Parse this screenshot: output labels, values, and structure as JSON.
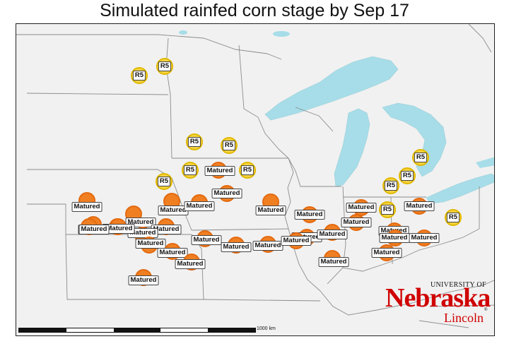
{
  "title": "Simulated rainfed corn stage by Sep 17",
  "colors": {
    "land": "#f1f1f1",
    "water": "#a6dde8",
    "border": "#8c8c8c",
    "r5_fill": "#f4d33f",
    "matured_fill": "#f07f22"
  },
  "markers": [
    {
      "label": "R5",
      "stage": "R5"
    },
    {
      "label": "R5",
      "stage": "R5"
    },
    {
      "label": "R5",
      "stage": "R5"
    },
    {
      "label": "R5",
      "stage": "R5"
    },
    {
      "label": "R5",
      "stage": "R5"
    },
    {
      "label": "R5",
      "stage": "R5"
    },
    {
      "label": "R5",
      "stage": "R5"
    },
    {
      "label": "R5",
      "stage": "R5"
    },
    {
      "label": "R5",
      "stage": "R5"
    },
    {
      "label": "R5",
      "stage": "R5"
    },
    {
      "label": "R5",
      "stage": "R5"
    },
    {
      "label": "R5",
      "stage": "R5"
    },
    {
      "label": "Matured",
      "stage": "Matured"
    },
    {
      "label": "Matured",
      "stage": "Matured"
    },
    {
      "label": "Matured",
      "stage": "Matured"
    },
    {
      "label": "Matured",
      "stage": "Matured"
    },
    {
      "label": "Matured",
      "stage": "Matured"
    },
    {
      "label": "Matured",
      "stage": "Matured"
    },
    {
      "label": "Matured",
      "stage": "Matured"
    },
    {
      "label": "Matured",
      "stage": "Matured"
    },
    {
      "label": "Matured",
      "stage": "Matured"
    },
    {
      "label": "Matured",
      "stage": "Matured"
    },
    {
      "label": "Matured",
      "stage": "Matured"
    },
    {
      "label": "Matured",
      "stage": "Matured"
    },
    {
      "label": "Matured",
      "stage": "Matured"
    },
    {
      "label": "Matured",
      "stage": "Matured"
    },
    {
      "label": "Matured",
      "stage": "Matured"
    },
    {
      "label": "Matured",
      "stage": "Matured"
    },
    {
      "label": "Matured",
      "stage": "Matured"
    },
    {
      "label": "Matured",
      "stage": "Matured"
    },
    {
      "label": "Matured",
      "stage": "Matured"
    },
    {
      "label": "Matured",
      "stage": "Matured"
    },
    {
      "label": "Matured",
      "stage": "Matured"
    },
    {
      "label": "Matured",
      "stage": "Matured"
    },
    {
      "label": "Matured",
      "stage": "Matured"
    },
    {
      "label": "Matured",
      "stage": "Matured"
    },
    {
      "label": "Matured",
      "stage": "Matured"
    },
    {
      "label": "Matured",
      "stage": "Matured"
    },
    {
      "label": "Matured",
      "stage": "Matured"
    },
    {
      "label": "Matured",
      "stage": "Matured"
    },
    {
      "label": "Matured",
      "stage": "Matured"
    },
    {
      "label": "Matured",
      "stage": "Matured"
    },
    {
      "label": "Matured",
      "stage": "Matured"
    },
    {
      "label": "Matured",
      "stage": "Matured"
    }
  ],
  "logo": {
    "university": "UNIVERSITY OF",
    "name": "Nebraska",
    "campus": "Lincoln",
    "registered": "®"
  },
  "scale_bar": {
    "label": "1000 km"
  }
}
